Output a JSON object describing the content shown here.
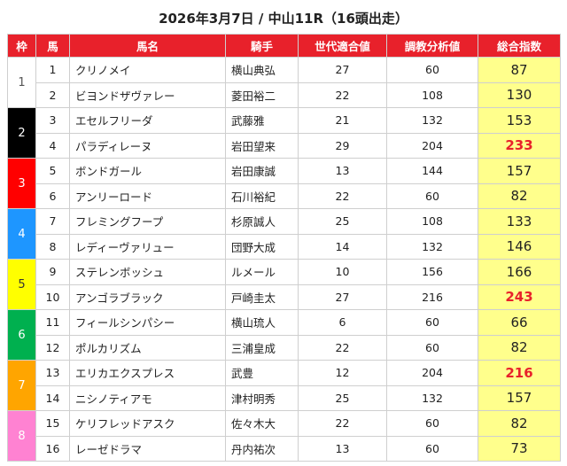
{
  "title": "2026年3月7日 / 中山11R（16頭出走）",
  "headers": {
    "waku": "枠",
    "uma": "馬",
    "name": "馬名",
    "jockey": "騎手",
    "aptitude": "世代適合値",
    "training": "調教分析値",
    "score": "総合指数"
  },
  "waku": [
    {
      "label": "1",
      "color": "#ffffff",
      "text_color": "#555555"
    },
    {
      "label": "2",
      "color": "#000000",
      "text_color": "#ffffff"
    },
    {
      "label": "3",
      "color": "#ff0000",
      "text_color": "#ffffff"
    },
    {
      "label": "4",
      "color": "#1e96ff",
      "text_color": "#ffffff"
    },
    {
      "label": "5",
      "color": "#ffff00",
      "text_color": "#333333"
    },
    {
      "label": "6",
      "color": "#00b04f",
      "text_color": "#ffffff"
    },
    {
      "label": "7",
      "color": "#ffa500",
      "text_color": "#ffffff"
    },
    {
      "label": "8",
      "color": "#ff82d2",
      "text_color": "#ffffff"
    }
  ],
  "rows": [
    {
      "uma": "1",
      "name": "クリノメイ",
      "jockey": "横山典弘",
      "aptitude": "27",
      "training": "60",
      "score": "87",
      "high": false
    },
    {
      "uma": "2",
      "name": "ビヨンドザヴァレー",
      "jockey": "菱田裕二",
      "aptitude": "22",
      "training": "108",
      "score": "130",
      "high": false
    },
    {
      "uma": "3",
      "name": "エセルフリーダ",
      "jockey": "武藤雅",
      "aptitude": "21",
      "training": "132",
      "score": "153",
      "high": false
    },
    {
      "uma": "4",
      "name": "パラディレーヌ",
      "jockey": "岩田望来",
      "aptitude": "29",
      "training": "204",
      "score": "233",
      "high": true
    },
    {
      "uma": "5",
      "name": "ボンドガール",
      "jockey": "岩田康誠",
      "aptitude": "13",
      "training": "144",
      "score": "157",
      "high": false
    },
    {
      "uma": "6",
      "name": "アンリーロード",
      "jockey": "石川裕紀",
      "aptitude": "22",
      "training": "60",
      "score": "82",
      "high": false
    },
    {
      "uma": "7",
      "name": "フレミングフープ",
      "jockey": "杉原誠人",
      "aptitude": "25",
      "training": "108",
      "score": "133",
      "high": false
    },
    {
      "uma": "8",
      "name": "レディーヴァリュー",
      "jockey": "団野大成",
      "aptitude": "14",
      "training": "132",
      "score": "146",
      "high": false
    },
    {
      "uma": "9",
      "name": "ステレンボッシュ",
      "jockey": "ルメール",
      "aptitude": "10",
      "training": "156",
      "score": "166",
      "high": false
    },
    {
      "uma": "10",
      "name": "アンゴラブラック",
      "jockey": "戸崎圭太",
      "aptitude": "27",
      "training": "216",
      "score": "243",
      "high": true
    },
    {
      "uma": "11",
      "name": "フィールシンパシー",
      "jockey": "横山琉人",
      "aptitude": "6",
      "training": "60",
      "score": "66",
      "high": false
    },
    {
      "uma": "12",
      "name": "ポルカリズム",
      "jockey": "三浦皇成",
      "aptitude": "22",
      "training": "60",
      "score": "82",
      "high": false
    },
    {
      "uma": "13",
      "name": "エリカエクスプレス",
      "jockey": "武豊",
      "aptitude": "12",
      "training": "204",
      "score": "216",
      "high": true
    },
    {
      "uma": "14",
      "name": "ニシノティアモ",
      "jockey": "津村明秀",
      "aptitude": "25",
      "training": "132",
      "score": "157",
      "high": false
    },
    {
      "uma": "15",
      "name": "ケリフレッドアスク",
      "jockey": "佐々木大",
      "aptitude": "22",
      "training": "60",
      "score": "82",
      "high": false
    },
    {
      "uma": "16",
      "name": "レーゼドラマ",
      "jockey": "丹内祐次",
      "aptitude": "13",
      "training": "60",
      "score": "73",
      "high": false
    }
  ]
}
